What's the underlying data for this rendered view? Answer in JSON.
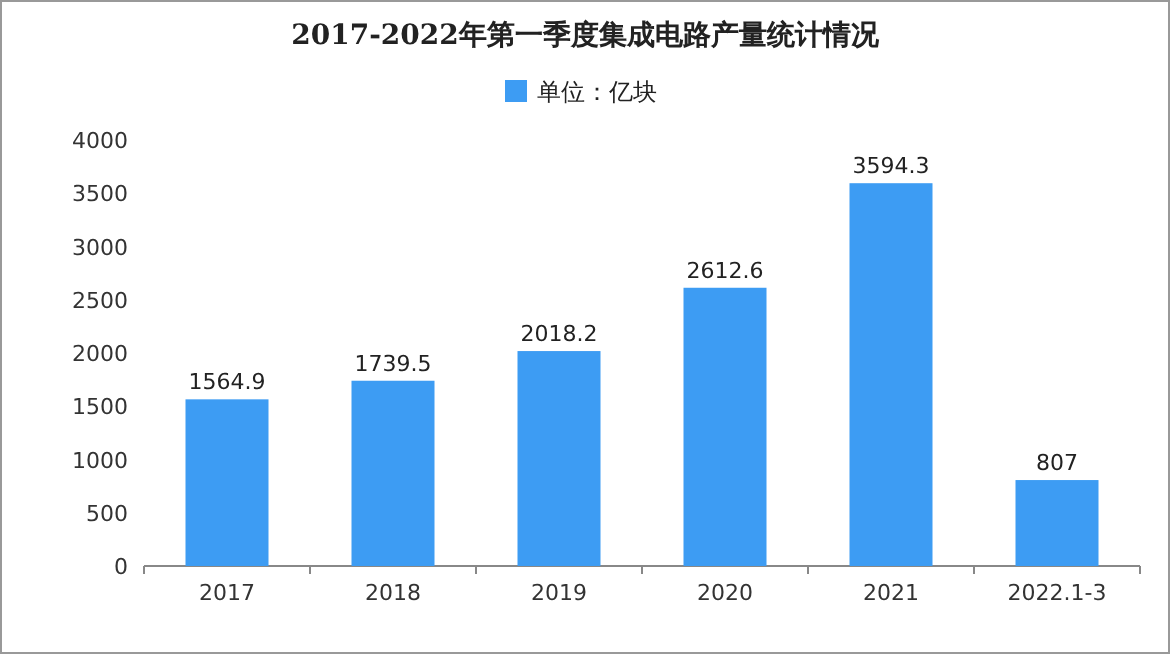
{
  "chart_data": {
    "type": "bar",
    "title": "2017-2022年第一季度集成电路产量统计情况",
    "categories": [
      "2017",
      "2018",
      "2019",
      "2020",
      "2021",
      "2022.1-3"
    ],
    "series": [
      {
        "name": "单位：亿块",
        "color": "#3d9cf3",
        "values": [
          1564.9,
          1739.5,
          2018.2,
          2612.6,
          3594.3,
          807
        ]
      }
    ],
    "ylim": [
      0,
      4000
    ],
    "yticks": [
      0,
      500,
      1000,
      1500,
      2000,
      2500,
      3000,
      3500,
      4000
    ],
    "data_labels": true,
    "legend": "top"
  }
}
